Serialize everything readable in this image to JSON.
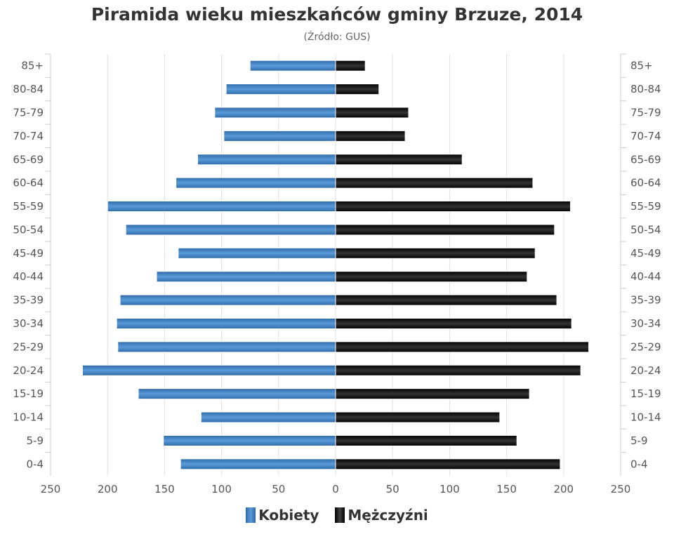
{
  "chart_data": {
    "type": "bar",
    "orientation": "horizontal-pyramid",
    "title": "Piramida wieku mieszkańców gminy Brzuze, 2014",
    "subtitle": "(Źródło: GUS)",
    "categories": [
      "85+",
      "80-84",
      "75-79",
      "70-74",
      "65-69",
      "60-64",
      "55-59",
      "50-54",
      "45-49",
      "40-44",
      "35-39",
      "30-34",
      "25-29",
      "20-24",
      "15-19",
      "10-14",
      "5-9",
      "0-4"
    ],
    "series": [
      {
        "name": "Kobiety",
        "side": "left",
        "color": "#3f7fc0",
        "values": [
          75,
          96,
          106,
          98,
          121,
          140,
          200,
          184,
          138,
          157,
          189,
          192,
          191,
          222,
          173,
          118,
          151,
          136
        ]
      },
      {
        "name": "Mężczyźni",
        "side": "right",
        "color": "#111111",
        "values": [
          26,
          38,
          64,
          61,
          111,
          173,
          206,
          192,
          175,
          168,
          194,
          207,
          222,
          215,
          170,
          144,
          159,
          197
        ]
      }
    ],
    "xticks": [
      "250",
      "200",
      "150",
      "100",
      "50",
      "0",
      "50",
      "100",
      "150",
      "200",
      "250"
    ],
    "xlim": [
      -250,
      250
    ],
    "grid": true,
    "legend": "bottom-center"
  }
}
